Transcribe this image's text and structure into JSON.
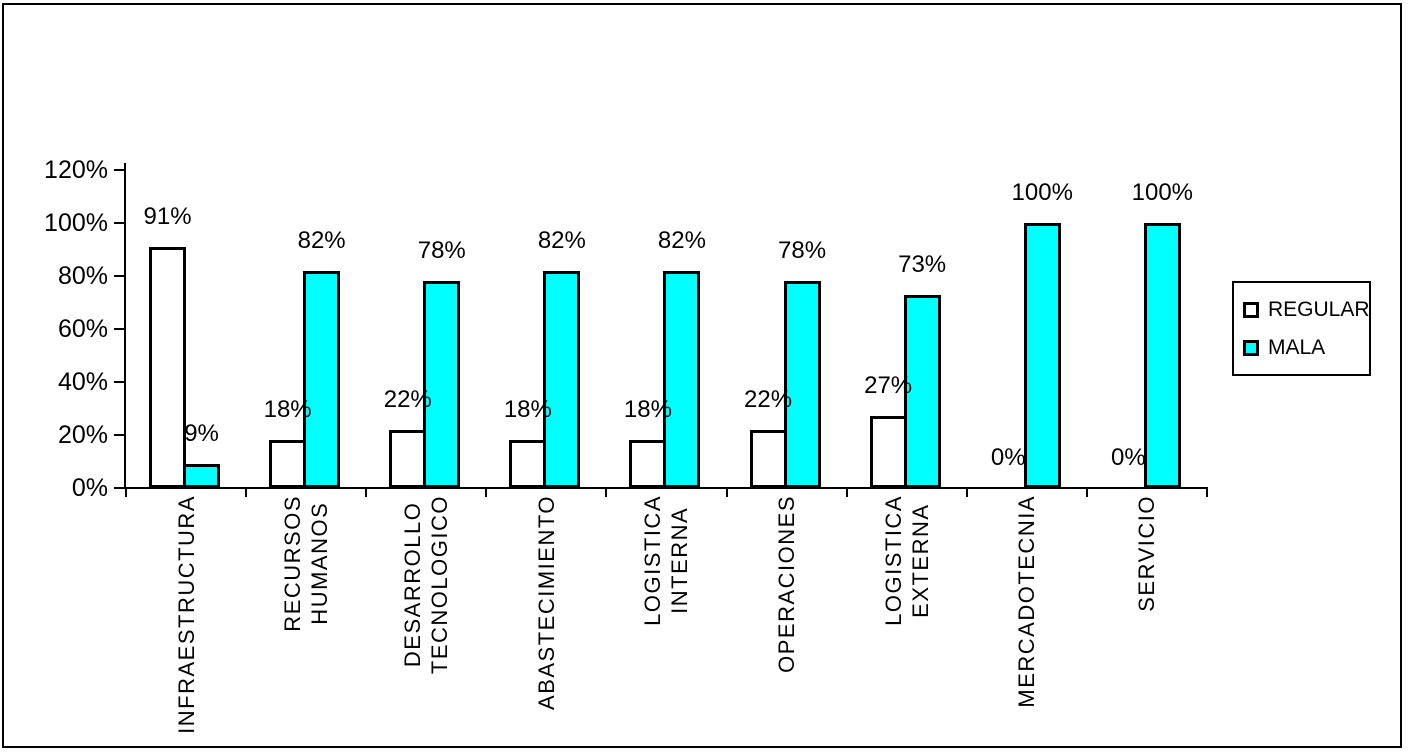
{
  "chart_data": {
    "type": "bar",
    "title": "",
    "xlabel": "",
    "ylabel": "",
    "categories": [
      "INFRAESTRUCTURA",
      "RECURSOS\nHUMANOS",
      "DESARROLLO\nTECNOLOGICO",
      "ABASTECIMIENTO",
      "LOGISTICA\nINTERNA",
      "OPERACIONES",
      "LOGISTICA\nEXTERNA",
      "MERCADOTECNIA",
      "SERVICIO"
    ],
    "series": [
      {
        "name": "REGULAR",
        "color": "#FFFFFF",
        "values": [
          91,
          18,
          22,
          18,
          18,
          22,
          27,
          0,
          0
        ]
      },
      {
        "name": "MALA",
        "color": "#00FFFF",
        "values": [
          9,
          82,
          78,
          82,
          82,
          78,
          73,
          100,
          100
        ]
      }
    ],
    "data_labels": [
      [
        "91%",
        "18%",
        "22%",
        "18%",
        "18%",
        "22%",
        "27%",
        "0%",
        "0%"
      ],
      [
        "9%",
        "82%",
        "78%",
        "82%",
        "82%",
        "78%",
        "73%",
        "100%",
        "100%"
      ]
    ],
    "y_ticks": [
      "0%",
      "20%",
      "40%",
      "60%",
      "80%",
      "100%",
      "120%"
    ],
    "y_tick_step": 20,
    "ylim": [
      0,
      120
    ],
    "grid": false,
    "legend_position": "right",
    "bar_outline_color": "#000000",
    "background_color": "#FFFFFF"
  }
}
